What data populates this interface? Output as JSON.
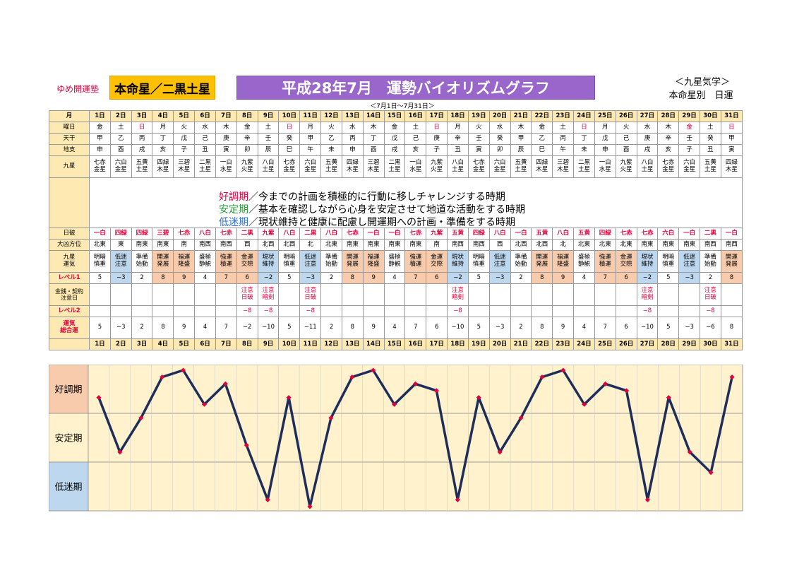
{
  "header": {
    "brand": "ゆめ開運塾",
    "honmei_badge": "本命星／二黒土星",
    "title": "平成28年7月　運勢バイオリズムグラフ",
    "right_top": "＜九星気学＞",
    "right_sub": "本命星別　日運",
    "date_range": "＜7月1日～7月31日＞"
  },
  "row_labels": {
    "month": "月",
    "weekday": "曜日",
    "tenkan": "天干",
    "chishi": "地支",
    "kyusei": "九星",
    "nippa": "日破",
    "daikyo": "大凶方位",
    "kyusei_unki": "九星\n運気",
    "level1": "レベル1",
    "money": "金銭・契約\n注意日",
    "level2": "レベル2",
    "total": "運気\n総合運"
  },
  "days": [
    "1日",
    "2日",
    "3日",
    "4日",
    "5日",
    "6日",
    "7日",
    "8日",
    "9日",
    "10日",
    "11日",
    "12日",
    "13日",
    "14日",
    "15日",
    "16日",
    "17日",
    "18日",
    "19日",
    "20日",
    "21日",
    "22日",
    "23日",
    "24日",
    "25日",
    "26日",
    "27日",
    "28日",
    "29日",
    "30日",
    "31日"
  ],
  "weekdays": [
    "金",
    "土",
    "日",
    "月",
    "火",
    "水",
    "木",
    "金",
    "土",
    "日",
    "月",
    "火",
    "水",
    "木",
    "金",
    "土",
    "日",
    "月",
    "火",
    "水",
    "木",
    "金",
    "土",
    "日",
    "月",
    "火",
    "水",
    "木",
    "金",
    "土",
    "日"
  ],
  "weekday_red": [
    2,
    9,
    16,
    23,
    28,
    30
  ],
  "tenkan": [
    "甲",
    "乙",
    "丙",
    "丁",
    "戊",
    "己",
    "庚",
    "辛",
    "壬",
    "癸",
    "甲",
    "乙",
    "丙",
    "丁",
    "戊",
    "己",
    "庚",
    "辛",
    "壬",
    "癸",
    "甲",
    "乙",
    "丙",
    "丁",
    "戊",
    "己",
    "庚",
    "辛",
    "壬",
    "癸",
    "甲"
  ],
  "chishi": [
    "申",
    "酉",
    "戌",
    "亥",
    "子",
    "丑",
    "寅",
    "卯",
    "辰",
    "巳",
    "午",
    "未",
    "申",
    "酉",
    "戌",
    "亥",
    "子",
    "丑",
    "寅",
    "卯",
    "辰",
    "巳",
    "午",
    "未",
    "申",
    "酉",
    "戌",
    "亥",
    "子",
    "丑",
    "寅"
  ],
  "kyusei": [
    "七赤\n金星",
    "六白\n金星",
    "五黄\n土星",
    "四緑\n木星",
    "三碧\n木星",
    "二黒\n土星",
    "一白\n水星",
    "九紫\n火星",
    "八白\n土星",
    "七赤\n金星",
    "六白\n金星",
    "五黄\n土星",
    "四緑\n木星",
    "三碧\n木星",
    "二黒\n土星",
    "一白\n水星",
    "九紫\n火星",
    "八白\n土星",
    "七赤\n金星",
    "六白\n金星",
    "五黄\n土星",
    "四緑\n木星",
    "三碧\n木星",
    "二黒\n土星",
    "一白\n水星",
    "九紫\n火星",
    "八白\n土星",
    "七赤\n金星",
    "六白\n金星",
    "五黄\n土星",
    "四緑\n木星"
  ],
  "legend": {
    "good_term": "好調期",
    "good_text": "／今までの計画を積極的に行動に移しチャレンジする時期",
    "stable_term": "安定期",
    "stable_text": "／基本を確認しながら心身を安定させて地道な活動をする時期",
    "low_term": "低迷期",
    "low_text": "／現状維持と健康に配慮し開運期への計画・準備をする時期"
  },
  "nippa": [
    "一白",
    "四緑",
    "四緑",
    "三碧",
    "七赤",
    "八白",
    "七赤",
    "二黒",
    "九紫",
    "八白",
    "二黒",
    "八白",
    "七赤",
    "一白",
    "一白",
    "七赤",
    "九紫",
    "五黄",
    "四緑",
    "八白",
    "一白",
    "五黄",
    "八白",
    "五黄",
    "四緑",
    "七赤",
    "七赤",
    "六白",
    "一白",
    "二黒",
    "一白"
  ],
  "daikyo": [
    "北東",
    "東",
    "南東",
    "南東",
    "南",
    "南西",
    "南西",
    "西",
    "北西",
    "北西",
    "北",
    "北東",
    "南東",
    "南東",
    "南東",
    "南東",
    "南",
    "南西",
    "南西",
    "西",
    "北西",
    "北西",
    "北",
    "北東",
    "北東",
    "北東",
    "南東",
    "南東",
    "南東",
    "南西",
    "南西"
  ],
  "unki": [
    "明暗\n慎重",
    "低迷\n注意",
    "準備\n始動",
    "開運\n発展",
    "福運\n隆盛",
    "盛極\n静観",
    "強運\n積運",
    "金運\n交際",
    "現状\n維持",
    "明暗\n慎重",
    "低迷\n注意",
    "準備\n始動",
    "開運\n発展",
    "福運\n隆盛",
    "盛極\n静観",
    "強運\n積運",
    "金運\n交際",
    "現状\n維持",
    "明暗\n慎重",
    "低迷\n注意",
    "準備\n始動",
    "開運\n発展",
    "福運\n隆盛",
    "盛極\n静観",
    "強運\n積運",
    "金運\n交際",
    "現状\n維持",
    "明暗\n慎重",
    "低迷\n注意",
    "準備\n始動",
    "開運\n発展"
  ],
  "level1": [
    "5",
    "−3",
    "2",
    "8",
    "9",
    "4",
    "7",
    "6",
    "−2",
    "5",
    "−3",
    "2",
    "8",
    "9",
    "4",
    "7",
    "6",
    "−2",
    "5",
    "−3",
    "2",
    "8",
    "9",
    "4",
    "7",
    "6",
    "−2",
    "5",
    "−3",
    "2",
    "8"
  ],
  "money": [
    "",
    "",
    "",
    "",
    "",
    "",
    "",
    "注意\n日破",
    "注意\n暗剣",
    "",
    "注意\n日破",
    "",
    "",
    "",
    "",
    "",
    "",
    "注意\n暗剣",
    "",
    "",
    "",
    "",
    "",
    "",
    "",
    "",
    "注意\n暗剣",
    "",
    "",
    "注意\n日破",
    ""
  ],
  "level2": [
    "",
    "",
    "",
    "",
    "",
    "",
    "",
    "−8",
    "−8",
    "",
    "−8",
    "",
    "",
    "",
    "",
    "",
    "",
    "−8",
    "",
    "",
    "",
    "",
    "",
    "",
    "",
    "",
    "−8",
    "",
    "",
    "−8",
    ""
  ],
  "total": [
    "5",
    "−3",
    "2",
    "8",
    "9",
    "4",
    "7",
    "−2",
    "−10",
    "5",
    "−11",
    "2",
    "8",
    "9",
    "4",
    "7",
    "6",
    "−10",
    "5",
    "−3",
    "2",
    "8",
    "9",
    "4",
    "7",
    "6",
    "−10",
    "5",
    "−3",
    "−6",
    "8"
  ],
  "chart_data": {
    "type": "line",
    "x": [
      1,
      2,
      3,
      4,
      5,
      6,
      7,
      8,
      9,
      10,
      11,
      12,
      13,
      14,
      15,
      16,
      17,
      18,
      19,
      20,
      21,
      22,
      23,
      24,
      25,
      26,
      27,
      28,
      29,
      30,
      31
    ],
    "values": [
      5,
      -3,
      2,
      8,
      9,
      4,
      7,
      -2,
      -10,
      5,
      -11,
      2,
      8,
      9,
      4,
      7,
      6,
      -10,
      5,
      -3,
      2,
      8,
      9,
      4,
      7,
      6,
      -10,
      5,
      -3,
      -6,
      8
    ],
    "bands": [
      {
        "label": "好調期",
        "color": "#f8cbad"
      },
      {
        "label": "安定期",
        "color": "#fff2cc"
      },
      {
        "label": "低迷期",
        "color": "#bdd7ee"
      }
    ],
    "line_color": "#1f2d5a",
    "marker_color": "#e0003c",
    "ylim": [
      -11,
      9
    ]
  }
}
